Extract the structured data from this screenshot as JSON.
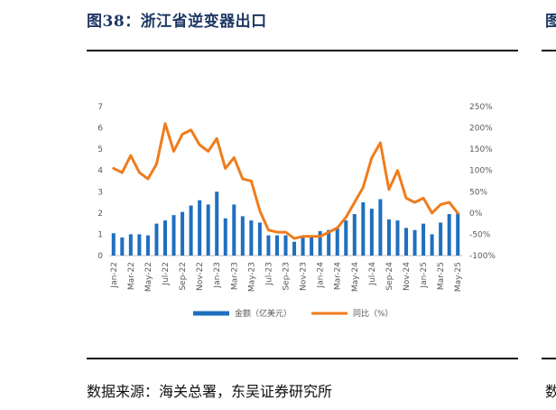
{
  "figure": {
    "title": "图38：浙江省逆变器出口",
    "source": "数据来源：海关总署，东吴证券研究所",
    "next_title_fragment": "图",
    "next_source_fragment": "数"
  },
  "colors": {
    "bar": "#1f6fbf",
    "line": "#f07c1c",
    "title": "#1f3864",
    "axis_text": "#595959"
  },
  "chart_data": {
    "type": "bar+line",
    "categories": [
      "Jan-22",
      "Feb-22",
      "Mar-22",
      "Apr-22",
      "May-22",
      "Jun-22",
      "Jul-22",
      "Aug-22",
      "Sep-22",
      "Oct-22",
      "Nov-22",
      "Dec-22",
      "Jan-23",
      "Feb-23",
      "Mar-23",
      "Apr-23",
      "May-23",
      "Jun-23",
      "Jul-23",
      "Aug-23",
      "Sep-23",
      "Oct-23",
      "Nov-23",
      "Dec-23",
      "Jan-24",
      "Feb-24",
      "Mar-24",
      "Apr-24",
      "May-24",
      "Jun-24",
      "Jul-24",
      "Aug-24",
      "Sep-24",
      "Oct-24",
      "Nov-24",
      "Dec-24",
      "Jan-25",
      "Feb-25",
      "Mar-25",
      "Apr-25",
      "May-25"
    ],
    "x_tick_labels": [
      "Jan-22",
      "Mar-22",
      "May-22",
      "Jul-22",
      "Sep-22",
      "Nov-22",
      "Jan-23",
      "Mar-23",
      "May-23",
      "Jul-23",
      "Sep-23",
      "Nov-23",
      "Jan-24",
      "Mar-24",
      "May-24",
      "Jul-24",
      "Sep-24",
      "Nov-24",
      "Jan-25",
      "Mar-25",
      "May-25"
    ],
    "series": [
      {
        "name": "金额（亿美元）",
        "type": "bar",
        "axis": "left",
        "values": [
          1.05,
          0.85,
          1.0,
          1.0,
          0.95,
          1.5,
          1.65,
          1.9,
          2.05,
          2.35,
          2.6,
          2.4,
          3.0,
          1.75,
          2.4,
          1.85,
          1.65,
          1.55,
          0.95,
          0.95,
          0.95,
          0.65,
          0.95,
          0.95,
          1.15,
          1.2,
          1.3,
          1.65,
          1.95,
          2.5,
          2.2,
          2.65,
          1.7,
          1.65,
          1.3,
          1.2,
          1.5,
          1.0,
          1.55,
          1.95,
          2.0
        ]
      },
      {
        "name": "同比（%）",
        "type": "line",
        "axis": "right",
        "values": [
          105,
          95,
          135,
          95,
          80,
          115,
          210,
          145,
          185,
          195,
          160,
          145,
          175,
          105,
          130,
          80,
          75,
          5,
          -40,
          -45,
          -45,
          -60,
          -55,
          -55,
          -55,
          -45,
          -35,
          -10,
          25,
          60,
          130,
          165,
          55,
          100,
          35,
          25,
          35,
          0,
          20,
          25,
          0
        ]
      }
    ],
    "y_left": {
      "ticks": [
        "0",
        "1",
        "2",
        "3",
        "4",
        "5",
        "6",
        "7"
      ],
      "range": [
        0,
        7
      ]
    },
    "y_right": {
      "ticks": [
        "-100%",
        "-50%",
        "0%",
        "50%",
        "100%",
        "150%",
        "200%",
        "250%"
      ],
      "range": [
        -100,
        250
      ]
    },
    "legend": {
      "position": "bottom",
      "entries": [
        "金额（亿美元）",
        "同比（%）"
      ]
    },
    "grid": false
  }
}
